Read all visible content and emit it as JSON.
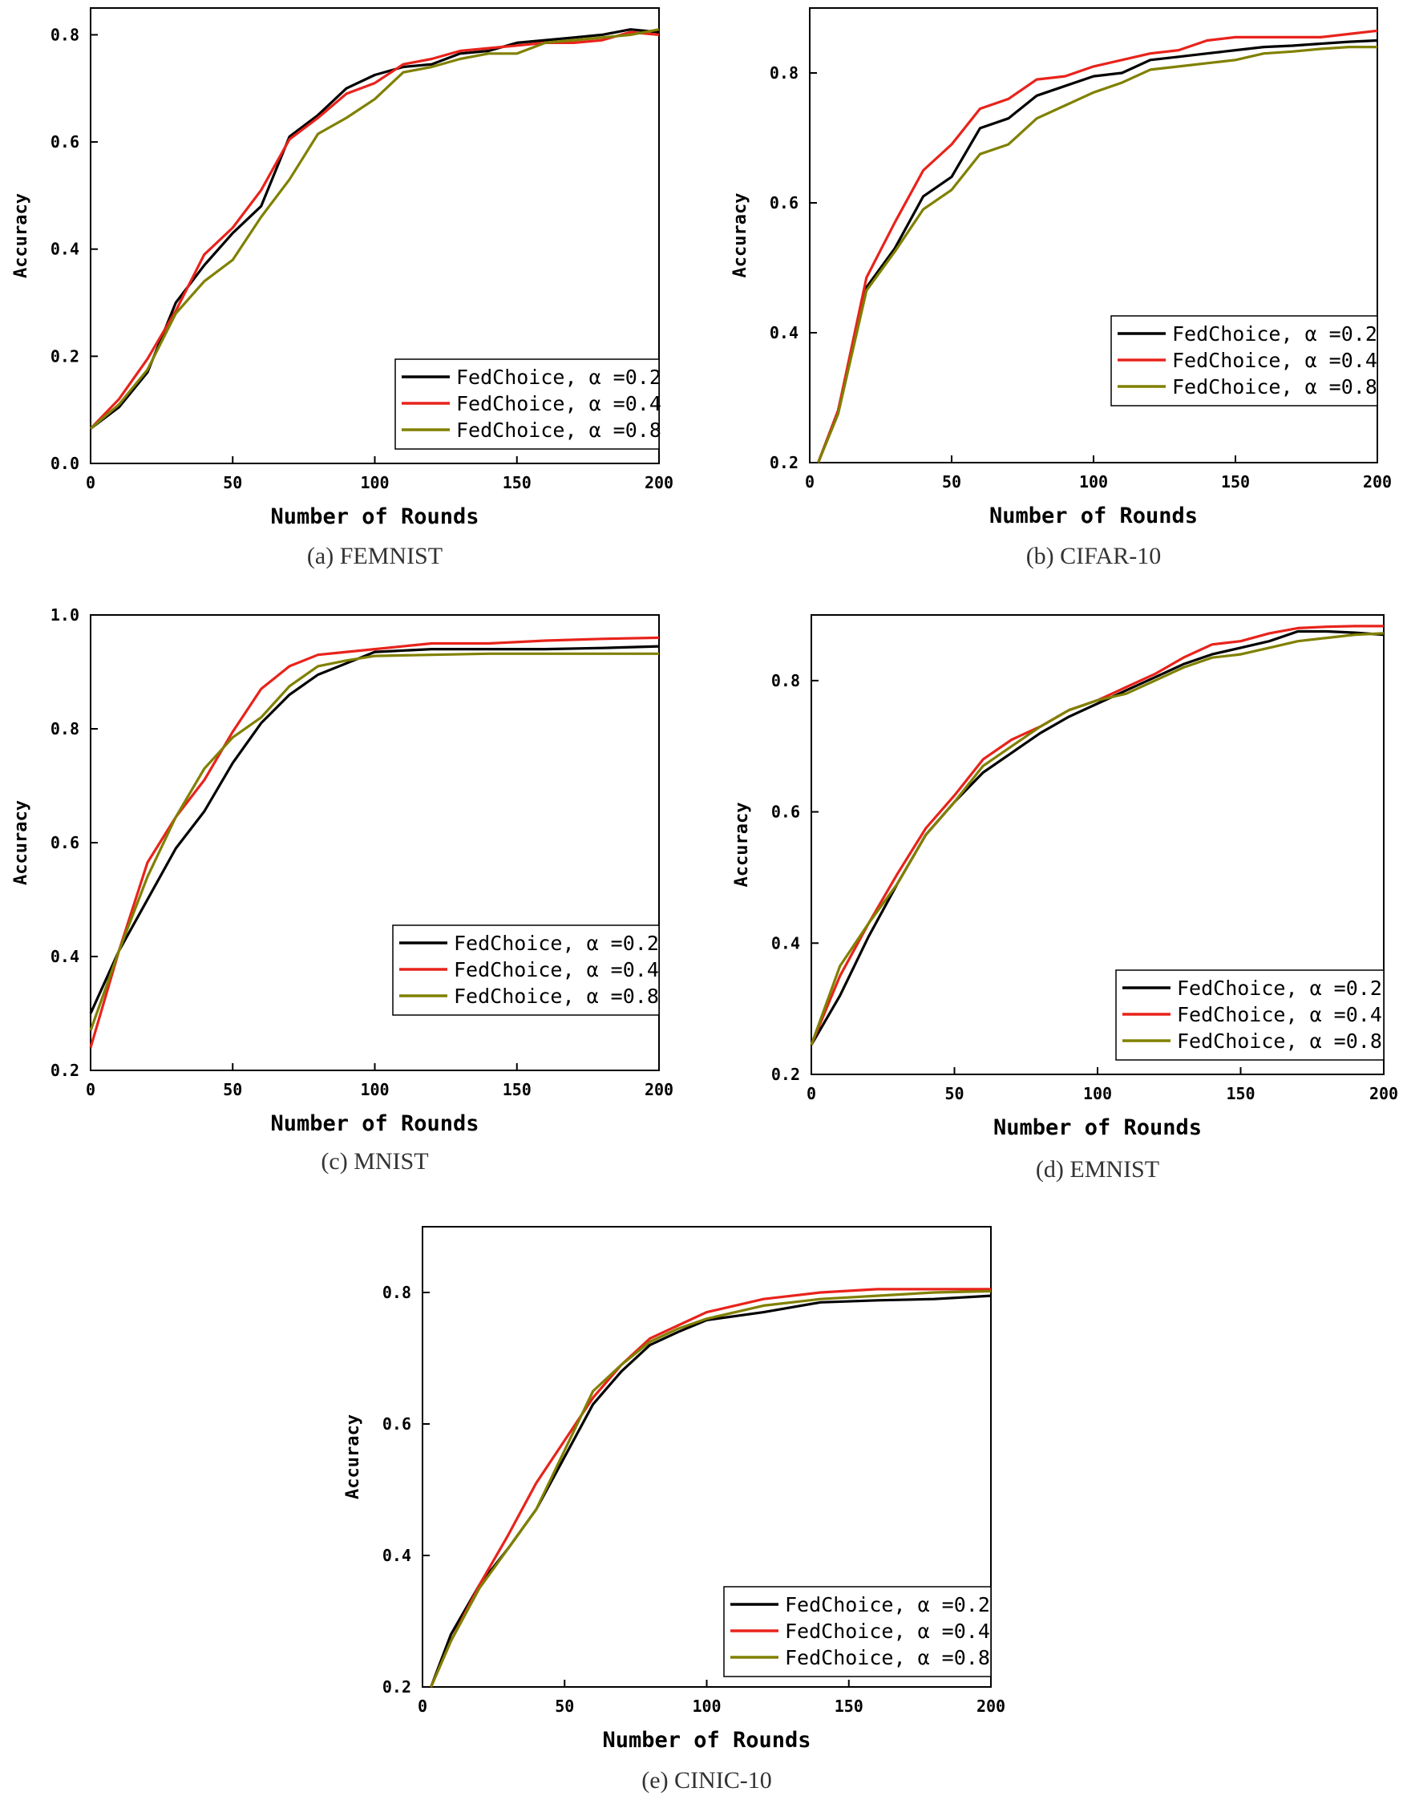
{
  "chart_data": [
    {
      "type": "line",
      "caption": "(a) FEMNIST",
      "xlabel": "Number of Rounds",
      "ylabel": "Accuracy",
      "xlim": [
        0,
        200
      ],
      "ylim": [
        0,
        0.85
      ],
      "xticks": [
        0,
        50,
        100,
        150,
        200
      ],
      "yticks": [
        0.0,
        0.2,
        0.4,
        0.6,
        0.8
      ],
      "legend_position": "bottom-right",
      "series": [
        {
          "name": "FedChoice, α =0.2",
          "color": "#000000",
          "x": [
            0,
            10,
            20,
            30,
            40,
            50,
            60,
            70,
            80,
            90,
            100,
            110,
            120,
            130,
            140,
            150,
            160,
            170,
            180,
            190,
            200
          ],
          "y": [
            0.065,
            0.105,
            0.17,
            0.3,
            0.37,
            0.43,
            0.48,
            0.61,
            0.65,
            0.7,
            0.725,
            0.74,
            0.745,
            0.765,
            0.77,
            0.785,
            0.79,
            0.795,
            0.8,
            0.81,
            0.805
          ]
        },
        {
          "name": "FedChoice, α =0.4",
          "color": "#e8231b",
          "x": [
            0,
            10,
            20,
            30,
            40,
            50,
            60,
            70,
            80,
            90,
            100,
            110,
            120,
            130,
            140,
            150,
            160,
            170,
            180,
            190,
            200
          ],
          "y": [
            0.065,
            0.12,
            0.195,
            0.285,
            0.39,
            0.44,
            0.51,
            0.605,
            0.645,
            0.69,
            0.71,
            0.745,
            0.755,
            0.77,
            0.775,
            0.78,
            0.785,
            0.785,
            0.79,
            0.805,
            0.8
          ]
        },
        {
          "name": "FedChoice, α =0.8",
          "color": "#808000",
          "x": [
            0,
            10,
            20,
            30,
            40,
            50,
            60,
            70,
            80,
            90,
            100,
            110,
            120,
            130,
            140,
            150,
            160,
            170,
            180,
            190,
            200
          ],
          "y": [
            0.065,
            0.11,
            0.175,
            0.28,
            0.34,
            0.38,
            0.46,
            0.53,
            0.615,
            0.645,
            0.68,
            0.73,
            0.74,
            0.755,
            0.765,
            0.765,
            0.785,
            0.79,
            0.795,
            0.8,
            0.81
          ]
        }
      ]
    },
    {
      "type": "line",
      "caption": "(b) CIFAR-10",
      "xlabel": "Number of Rounds",
      "ylabel": "Accuracy",
      "xlim": [
        0,
        200
      ],
      "ylim": [
        0.2,
        0.9
      ],
      "xticks": [
        0,
        50,
        100,
        150,
        200
      ],
      "yticks": [
        0.2,
        0.4,
        0.6,
        0.8
      ],
      "legend_position": "bottom-right",
      "series": [
        {
          "name": "FedChoice, α =0.2",
          "color": "#000000",
          "x": [
            3,
            10,
            20,
            30,
            40,
            50,
            60,
            70,
            80,
            90,
            100,
            110,
            120,
            130,
            140,
            150,
            160,
            170,
            180,
            190,
            200
          ],
          "y": [
            0.2,
            0.28,
            0.47,
            0.53,
            0.61,
            0.64,
            0.715,
            0.73,
            0.765,
            0.78,
            0.795,
            0.8,
            0.82,
            0.825,
            0.83,
            0.835,
            0.84,
            0.842,
            0.845,
            0.848,
            0.85
          ]
        },
        {
          "name": "FedChoice, α =0.4",
          "color": "#e8231b",
          "x": [
            3,
            10,
            20,
            30,
            40,
            50,
            60,
            70,
            80,
            90,
            100,
            110,
            120,
            130,
            140,
            150,
            160,
            170,
            180,
            190,
            200
          ],
          "y": [
            0.2,
            0.28,
            0.485,
            0.57,
            0.65,
            0.69,
            0.745,
            0.76,
            0.79,
            0.795,
            0.81,
            0.82,
            0.83,
            0.835,
            0.85,
            0.855,
            0.855,
            0.855,
            0.855,
            0.86,
            0.865
          ]
        },
        {
          "name": "FedChoice, α =0.8",
          "color": "#808000",
          "x": [
            3,
            10,
            20,
            30,
            40,
            50,
            60,
            70,
            80,
            90,
            100,
            110,
            120,
            130,
            140,
            150,
            160,
            170,
            180,
            190,
            200
          ],
          "y": [
            0.2,
            0.275,
            0.465,
            0.525,
            0.59,
            0.62,
            0.675,
            0.69,
            0.73,
            0.75,
            0.77,
            0.785,
            0.805,
            0.81,
            0.815,
            0.82,
            0.83,
            0.833,
            0.837,
            0.84,
            0.84
          ]
        }
      ]
    },
    {
      "type": "line",
      "caption": "(c) MNIST",
      "xlabel": "Number of Rounds",
      "ylabel": "Accuracy",
      "xlim": [
        0,
        200
      ],
      "ylim": [
        0.2,
        1.0
      ],
      "xticks": [
        0,
        50,
        100,
        150,
        200
      ],
      "yticks": [
        0.2,
        0.4,
        0.6,
        0.8,
        1.0
      ],
      "legend_position": "bottom-right",
      "series": [
        {
          "name": "FedChoice, α =0.2",
          "color": "#000000",
          "x": [
            0,
            10,
            20,
            30,
            40,
            50,
            60,
            70,
            80,
            90,
            100,
            120,
            140,
            160,
            180,
            200
          ],
          "y": [
            0.3,
            0.41,
            0.5,
            0.59,
            0.655,
            0.74,
            0.81,
            0.86,
            0.895,
            0.915,
            0.935,
            0.94,
            0.94,
            0.94,
            0.942,
            0.945
          ]
        },
        {
          "name": "FedChoice, α =0.4",
          "color": "#e8231b",
          "x": [
            0,
            10,
            20,
            30,
            40,
            50,
            60,
            70,
            80,
            90,
            100,
            120,
            140,
            160,
            180,
            200
          ],
          "y": [
            0.24,
            0.41,
            0.565,
            0.645,
            0.71,
            0.795,
            0.87,
            0.91,
            0.93,
            0.935,
            0.94,
            0.95,
            0.95,
            0.955,
            0.958,
            0.96
          ]
        },
        {
          "name": "FedChoice, α =0.8",
          "color": "#808000",
          "x": [
            0,
            10,
            20,
            30,
            40,
            50,
            60,
            70,
            80,
            90,
            100,
            120,
            140,
            160,
            180,
            200
          ],
          "y": [
            0.27,
            0.41,
            0.54,
            0.645,
            0.73,
            0.785,
            0.82,
            0.875,
            0.91,
            0.92,
            0.928,
            0.93,
            0.932,
            0.932,
            0.932,
            0.932
          ]
        }
      ]
    },
    {
      "type": "line",
      "caption": "(d) EMNIST",
      "xlabel": "Number of Rounds",
      "ylabel": "Accuracy",
      "xlim": [
        0,
        200
      ],
      "ylim": [
        0.2,
        0.9
      ],
      "xticks": [
        0,
        50,
        100,
        150,
        200
      ],
      "yticks": [
        0.2,
        0.4,
        0.6,
        0.8
      ],
      "legend_position": "bottom-right",
      "series": [
        {
          "name": "FedChoice, α =0.2",
          "color": "#000000",
          "x": [
            0,
            10,
            20,
            30,
            40,
            50,
            60,
            70,
            80,
            90,
            100,
            110,
            120,
            130,
            140,
            150,
            160,
            170,
            180,
            190,
            200
          ],
          "y": [
            0.245,
            0.32,
            0.41,
            0.49,
            0.565,
            0.615,
            0.66,
            0.69,
            0.72,
            0.745,
            0.765,
            0.785,
            0.805,
            0.825,
            0.84,
            0.85,
            0.86,
            0.875,
            0.875,
            0.873,
            0.87
          ]
        },
        {
          "name": "FedChoice, α =0.4",
          "color": "#e8231b",
          "x": [
            0,
            10,
            20,
            30,
            40,
            50,
            60,
            70,
            80,
            90,
            100,
            110,
            120,
            130,
            140,
            150,
            160,
            170,
            180,
            190,
            200
          ],
          "y": [
            0.245,
            0.35,
            0.43,
            0.505,
            0.575,
            0.625,
            0.68,
            0.71,
            0.73,
            0.755,
            0.77,
            0.79,
            0.81,
            0.835,
            0.855,
            0.86,
            0.872,
            0.88,
            0.882,
            0.883,
            0.883
          ]
        },
        {
          "name": "FedChoice, α =0.8",
          "color": "#808000",
          "x": [
            0,
            10,
            20,
            30,
            40,
            50,
            60,
            70,
            80,
            90,
            100,
            110,
            120,
            130,
            140,
            150,
            160,
            170,
            180,
            190,
            200
          ],
          "y": [
            0.245,
            0.365,
            0.43,
            0.49,
            0.565,
            0.615,
            0.67,
            0.7,
            0.73,
            0.755,
            0.77,
            0.78,
            0.8,
            0.82,
            0.835,
            0.84,
            0.85,
            0.86,
            0.865,
            0.87,
            0.872
          ]
        }
      ]
    },
    {
      "type": "line",
      "caption": "(e) CINIC-10",
      "xlabel": "Number of Rounds",
      "ylabel": "Accuracy",
      "xlim": [
        0,
        200
      ],
      "ylim": [
        0.2,
        0.9
      ],
      "xticks": [
        0,
        50,
        100,
        150,
        200
      ],
      "yticks": [
        0.2,
        0.4,
        0.6,
        0.8
      ],
      "legend_position": "bottom-right",
      "series": [
        {
          "name": "FedChoice, α =0.2",
          "color": "#000000",
          "x": [
            3,
            10,
            20,
            30,
            40,
            50,
            60,
            70,
            80,
            90,
            100,
            120,
            140,
            160,
            180,
            200
          ],
          "y": [
            0.2,
            0.28,
            0.355,
            0.41,
            0.47,
            0.55,
            0.63,
            0.68,
            0.72,
            0.74,
            0.758,
            0.77,
            0.785,
            0.788,
            0.79,
            0.795
          ]
        },
        {
          "name": "FedChoice, α =0.4",
          "color": "#e8231b",
          "x": [
            3,
            10,
            20,
            30,
            40,
            50,
            60,
            70,
            80,
            90,
            100,
            120,
            140,
            160,
            180,
            200
          ],
          "y": [
            0.2,
            0.27,
            0.355,
            0.43,
            0.51,
            0.575,
            0.64,
            0.69,
            0.73,
            0.75,
            0.77,
            0.79,
            0.8,
            0.805,
            0.805,
            0.805
          ]
        },
        {
          "name": "FedChoice, α =0.8",
          "color": "#808000",
          "x": [
            3,
            10,
            20,
            30,
            40,
            50,
            60,
            70,
            80,
            90,
            100,
            120,
            140,
            160,
            180,
            200
          ],
          "y": [
            0.2,
            0.27,
            0.35,
            0.41,
            0.47,
            0.56,
            0.65,
            0.69,
            0.725,
            0.745,
            0.76,
            0.78,
            0.79,
            0.795,
            0.8,
            0.802
          ]
        }
      ]
    }
  ]
}
